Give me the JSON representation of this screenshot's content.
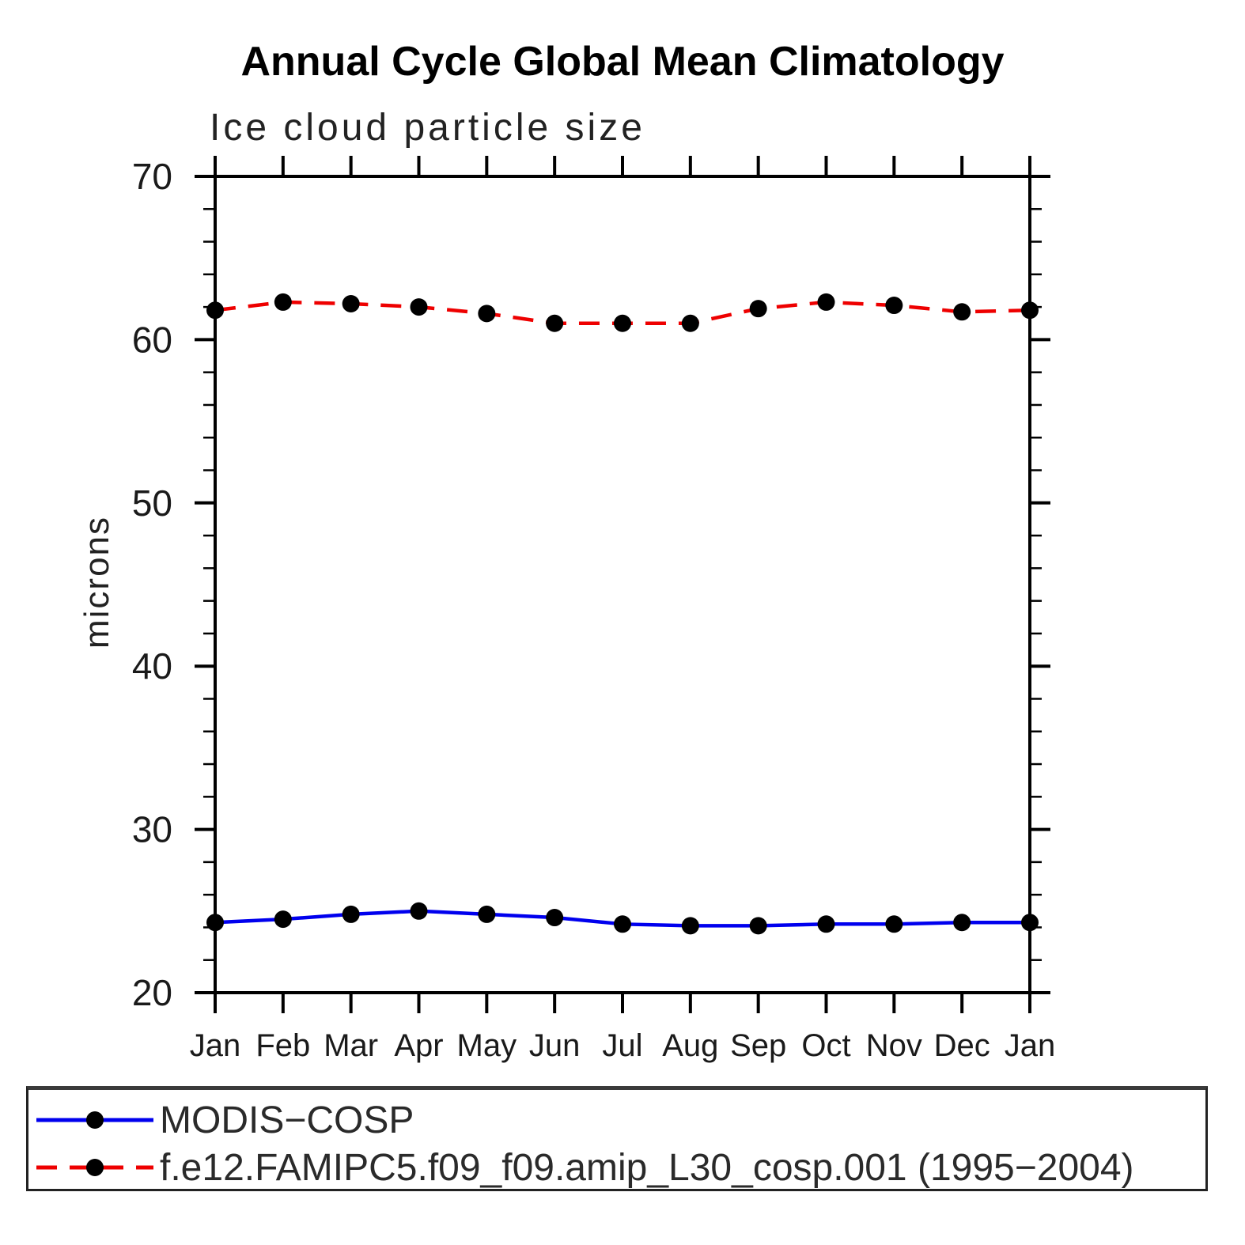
{
  "title": "Annual Cycle Global Mean Climatology",
  "chart_data": {
    "type": "line",
    "title": "Annual Cycle Global Mean Climatology",
    "subtitle": "Ice cloud particle size",
    "ylabel": "microns",
    "xlabel": "",
    "ylim": [
      20,
      70
    ],
    "y_major_ticks": [
      20,
      30,
      40,
      50,
      60,
      70
    ],
    "y_minor_step": 2,
    "grid": "off",
    "legend_position": "bottom",
    "marker_color": "#000000",
    "categories": [
      "Jan",
      "Feb",
      "Mar",
      "Apr",
      "May",
      "Jun",
      "Jul",
      "Aug",
      "Sep",
      "Oct",
      "Nov",
      "Dec",
      "Jan"
    ],
    "series": [
      {
        "name": "MODIS−COSP",
        "color": "#0000ee",
        "style": "solid",
        "dash": "",
        "marker": "filled-circle",
        "values": [
          24.3,
          24.5,
          24.8,
          25.0,
          24.8,
          24.6,
          24.2,
          24.1,
          24.1,
          24.2,
          24.2,
          24.3,
          24.3
        ]
      },
      {
        "name": "f.e12.FAMIPC5.f09_f09.amip_L30_cosp.001 (1995−2004)",
        "color": "#ee0000",
        "style": "dashed",
        "dash": "26 16",
        "marker": "filled-circle",
        "values": [
          61.8,
          62.3,
          62.2,
          62.0,
          61.6,
          61.0,
          61.0,
          61.0,
          61.9,
          62.3,
          62.1,
          61.7,
          61.8
        ]
      }
    ]
  }
}
